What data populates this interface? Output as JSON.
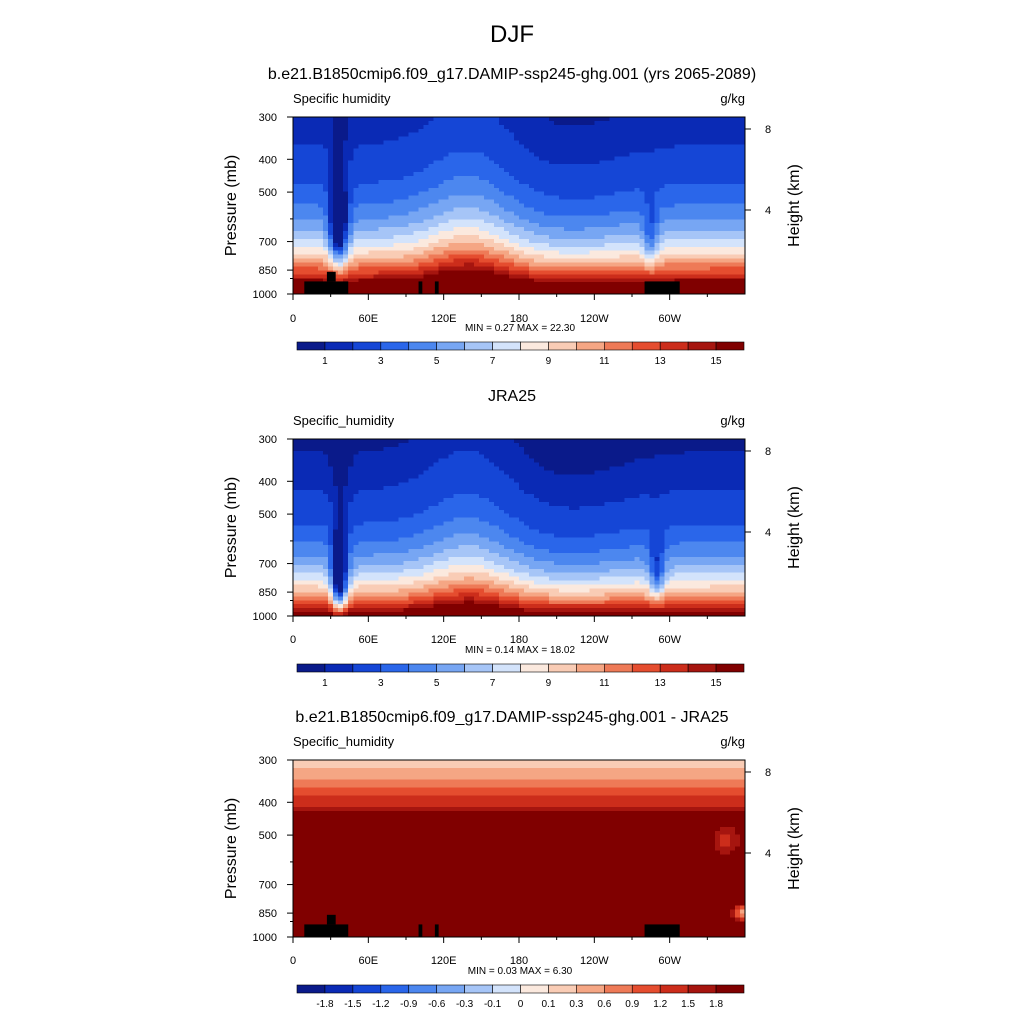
{
  "figure": {
    "title": "DJF"
  },
  "colors": {
    "full": [
      "#0a1a8a",
      "#0a2ab5",
      "#1546d6",
      "#2a66ea",
      "#4c87ef",
      "#77a6f3",
      "#a6c5f7",
      "#d3e3fb",
      "#fbe9de",
      "#f9ccb5",
      "#f5a684",
      "#ee7a57",
      "#e54d2f",
      "#cc2d1b",
      "#a6150f",
      "#800000"
    ],
    "diff": [
      "#0a1a8a",
      "#0a2ab5",
      "#1546d6",
      "#2a66ea",
      "#4c87ef",
      "#77a6f3",
      "#a6c5f7",
      "#d3e3fb",
      "#fbe9de",
      "#f9ccb5",
      "#f5a684",
      "#ee7a57",
      "#e54d2f",
      "#cc2d1b",
      "#a6150f",
      "#800000"
    ],
    "land_mask": "#000000"
  },
  "chart_data": [
    {
      "type": "heatmap",
      "panel_title": "b.e21.B1850cmip6.f09_g17.DAMIP-ssp245-ghg.001 (yrs 2065-2089)",
      "left_label": "Specific humidity",
      "units": "g/kg",
      "ylabel": "Pressure (mb)",
      "ylabel_right": "Height (km)",
      "x_ticks": [
        "0",
        "60E",
        "120E",
        "180",
        "120W",
        "60W"
      ],
      "x_tick_lon": [
        0,
        60,
        120,
        180,
        240,
        300
      ],
      "xlim": [
        0,
        360
      ],
      "y_ticks": [
        "300",
        "400",
        "500",
        "700",
        "850",
        "1000"
      ],
      "y_tick_p": [
        300,
        400,
        500,
        700,
        850,
        1000
      ],
      "ylim": [
        1000,
        300
      ],
      "right_ticks": [
        "8",
        "4"
      ],
      "right_tick_km": [
        8,
        4
      ],
      "stats_text": "MIN =   0.27  MAX =  22.30",
      "min": 0.27,
      "max": 22.3,
      "colorbar_type": "full",
      "colorbar_labels": [
        "1",
        "3",
        "5",
        "7",
        "9",
        "11",
        "13",
        "15"
      ],
      "field": "model",
      "land_mask": true
    },
    {
      "type": "heatmap",
      "panel_title": "JRA25",
      "left_label": "Specific_humidity",
      "units": "g/kg",
      "ylabel": "Pressure (mb)",
      "ylabel_right": "Height (km)",
      "x_ticks": [
        "0",
        "60E",
        "120E",
        "180",
        "120W",
        "60W"
      ],
      "x_tick_lon": [
        0,
        60,
        120,
        180,
        240,
        300
      ],
      "xlim": [
        0,
        360
      ],
      "y_ticks": [
        "300",
        "400",
        "500",
        "700",
        "850",
        "1000"
      ],
      "y_tick_p": [
        300,
        400,
        500,
        700,
        850,
        1000
      ],
      "ylim": [
        1000,
        300
      ],
      "right_ticks": [
        "8",
        "4"
      ],
      "right_tick_km": [
        8,
        4
      ],
      "stats_text": "MIN =   0.14  MAX =  18.02",
      "min": 0.14,
      "max": 18.02,
      "colorbar_type": "full",
      "colorbar_labels": [
        "1",
        "3",
        "5",
        "7",
        "9",
        "11",
        "13",
        "15"
      ],
      "field": "obs",
      "land_mask": false
    },
    {
      "type": "heatmap",
      "panel_title": "b.e21.B1850cmip6.f09_g17.DAMIP-ssp245-ghg.001 - JRA25",
      "left_label": "Specific_humidity",
      "units": "g/kg",
      "ylabel": "Pressure (mb)",
      "ylabel_right": "Height (km)",
      "x_ticks": [
        "0",
        "60E",
        "120E",
        "180",
        "120W",
        "60W"
      ],
      "x_tick_lon": [
        0,
        60,
        120,
        180,
        240,
        300
      ],
      "xlim": [
        0,
        360
      ],
      "y_ticks": [
        "300",
        "400",
        "500",
        "700",
        "850",
        "1000"
      ],
      "y_tick_p": [
        300,
        400,
        500,
        700,
        850,
        1000
      ],
      "ylim": [
        1000,
        300
      ],
      "right_ticks": [
        "8",
        "4"
      ],
      "right_tick_km": [
        8,
        4
      ],
      "stats_text": "MIN =   0.03  MAX =   6.30",
      "min": 0.03,
      "max": 6.3,
      "colorbar_type": "diff",
      "colorbar_labels": [
        "-1.8",
        "-1.5",
        "-1.2",
        "-0.9",
        "-0.6",
        "-0.3",
        "-0.1",
        "0",
        "0.1",
        "0.3",
        "0.6",
        "0.9",
        "1.2",
        "1.5",
        "1.8"
      ],
      "field": "diff",
      "land_mask": true
    }
  ]
}
